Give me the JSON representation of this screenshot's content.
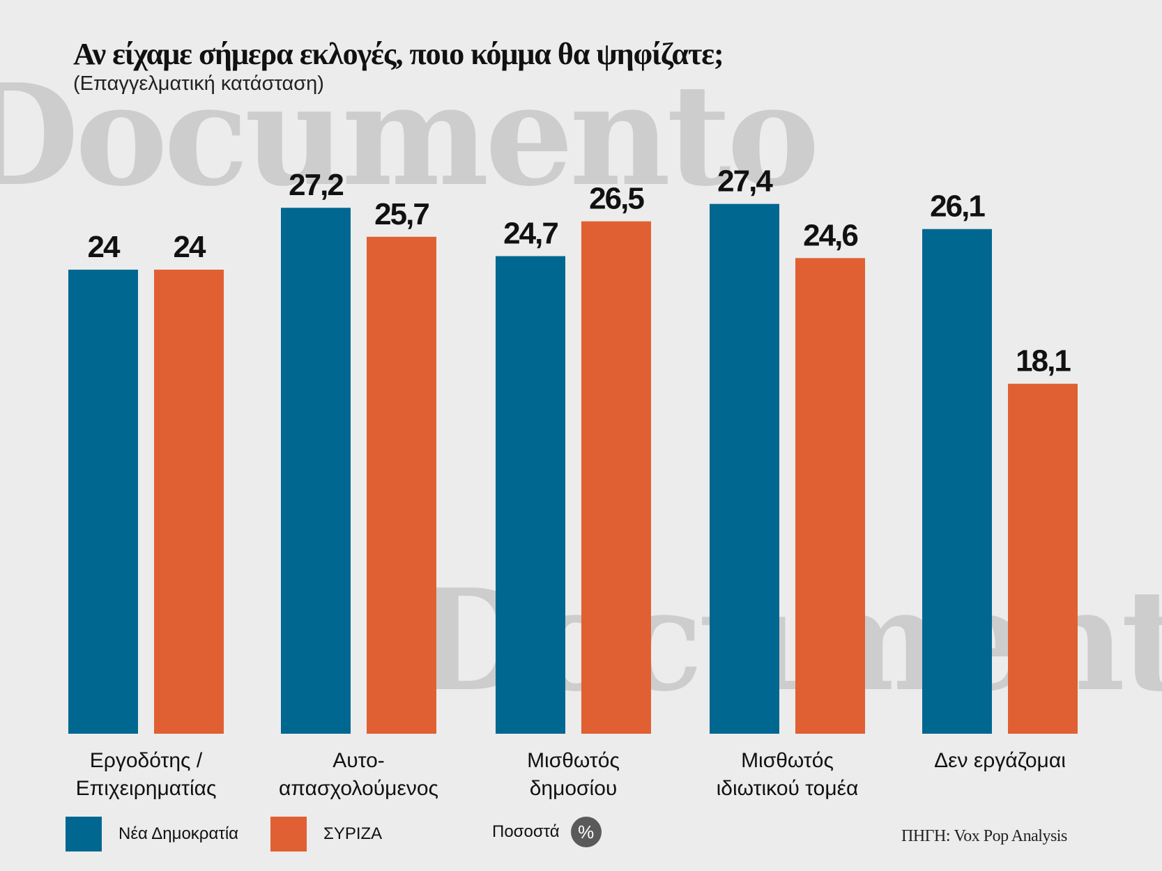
{
  "watermark": "Documento",
  "colors": {
    "nd": "#006791",
    "syriza": "#e06033",
    "background": "#ececec",
    "badge": "#5a5a5a"
  },
  "legend": {
    "nd_label": "Νέα Δημοκρατία",
    "syriza_label": "ΣΥΡΙΖΑ",
    "percent_label": "Ποσοστά",
    "percent_symbol": "%"
  },
  "source": "ΠΗΓΗ: Vox Pop Analysis",
  "chart_data": {
    "type": "bar",
    "title": "Αν είχαμε σήμερα εκλογές, ποιο κόμμα θα ψηφίζατε;",
    "subtitle": "(Επαγγελματική κατάσταση)",
    "categories": [
      [
        "Εργοδότης /",
        "Επιχειρηματίας"
      ],
      [
        "Αυτο-",
        "απασχολούμενος"
      ],
      [
        "Μισθωτός",
        "δημοσίου"
      ],
      [
        "Μισθωτός",
        "ιδιωτικού τομέα"
      ],
      [
        "Δεν εργάζομαι"
      ]
    ],
    "series": [
      {
        "name": "Νέα Δημοκρατία",
        "values": [
          24,
          27.2,
          24.7,
          27.4,
          26.1
        ],
        "labels": [
          "24",
          "27,2",
          "24,7",
          "27,4",
          "26,1"
        ]
      },
      {
        "name": "ΣΥΡΙΖΑ",
        "values": [
          24,
          25.7,
          26.5,
          24.6,
          18.1
        ],
        "labels": [
          "24",
          "25,7",
          "26,5",
          "24,6",
          "18,1"
        ]
      }
    ],
    "ylim": [
      0,
      28
    ],
    "grid": false,
    "legend_position": "bottom"
  }
}
